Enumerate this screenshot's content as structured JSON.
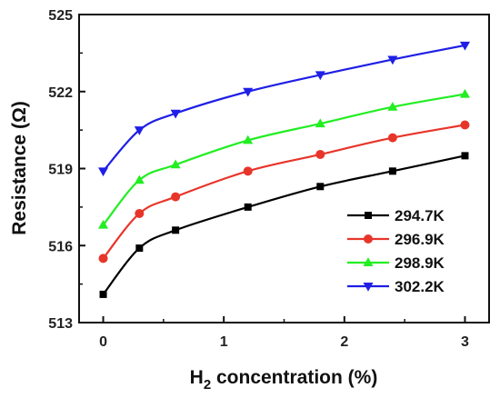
{
  "chart_data": {
    "type": "line",
    "xlabel": {
      "main": "H",
      "sub": "2",
      "rest": " concentration (%)"
    },
    "ylabel": "Resistance (Ω)",
    "xlim": [
      -0.2,
      3.2
    ],
    "ylim": [
      513,
      525
    ],
    "xticks": [
      0,
      1,
      2,
      3
    ],
    "yticks": [
      513,
      516,
      519,
      522,
      525
    ],
    "x": [
      0,
      0.3,
      0.6,
      1.2,
      1.8,
      2.4,
      3.0
    ],
    "legend_position": "bottom-right",
    "series": [
      {
        "name": "294.7K",
        "marker": "square",
        "color": "#000000",
        "values": [
          514.1,
          515.9,
          516.6,
          517.5,
          518.3,
          518.9,
          519.5
        ]
      },
      {
        "name": "296.9K",
        "marker": "circle",
        "color": "#e8352a",
        "values": [
          515.5,
          517.25,
          517.9,
          518.9,
          519.55,
          520.2,
          520.7
        ]
      },
      {
        "name": "298.9K",
        "marker": "triangle-up",
        "color": "#22ee22",
        "values": [
          516.8,
          518.55,
          519.15,
          520.1,
          520.75,
          521.4,
          521.9
        ]
      },
      {
        "name": "302.2K",
        "marker": "triangle-down",
        "color": "#1f1fe6",
        "values": [
          518.9,
          520.5,
          521.15,
          522.0,
          522.65,
          523.25,
          523.8
        ]
      }
    ]
  }
}
